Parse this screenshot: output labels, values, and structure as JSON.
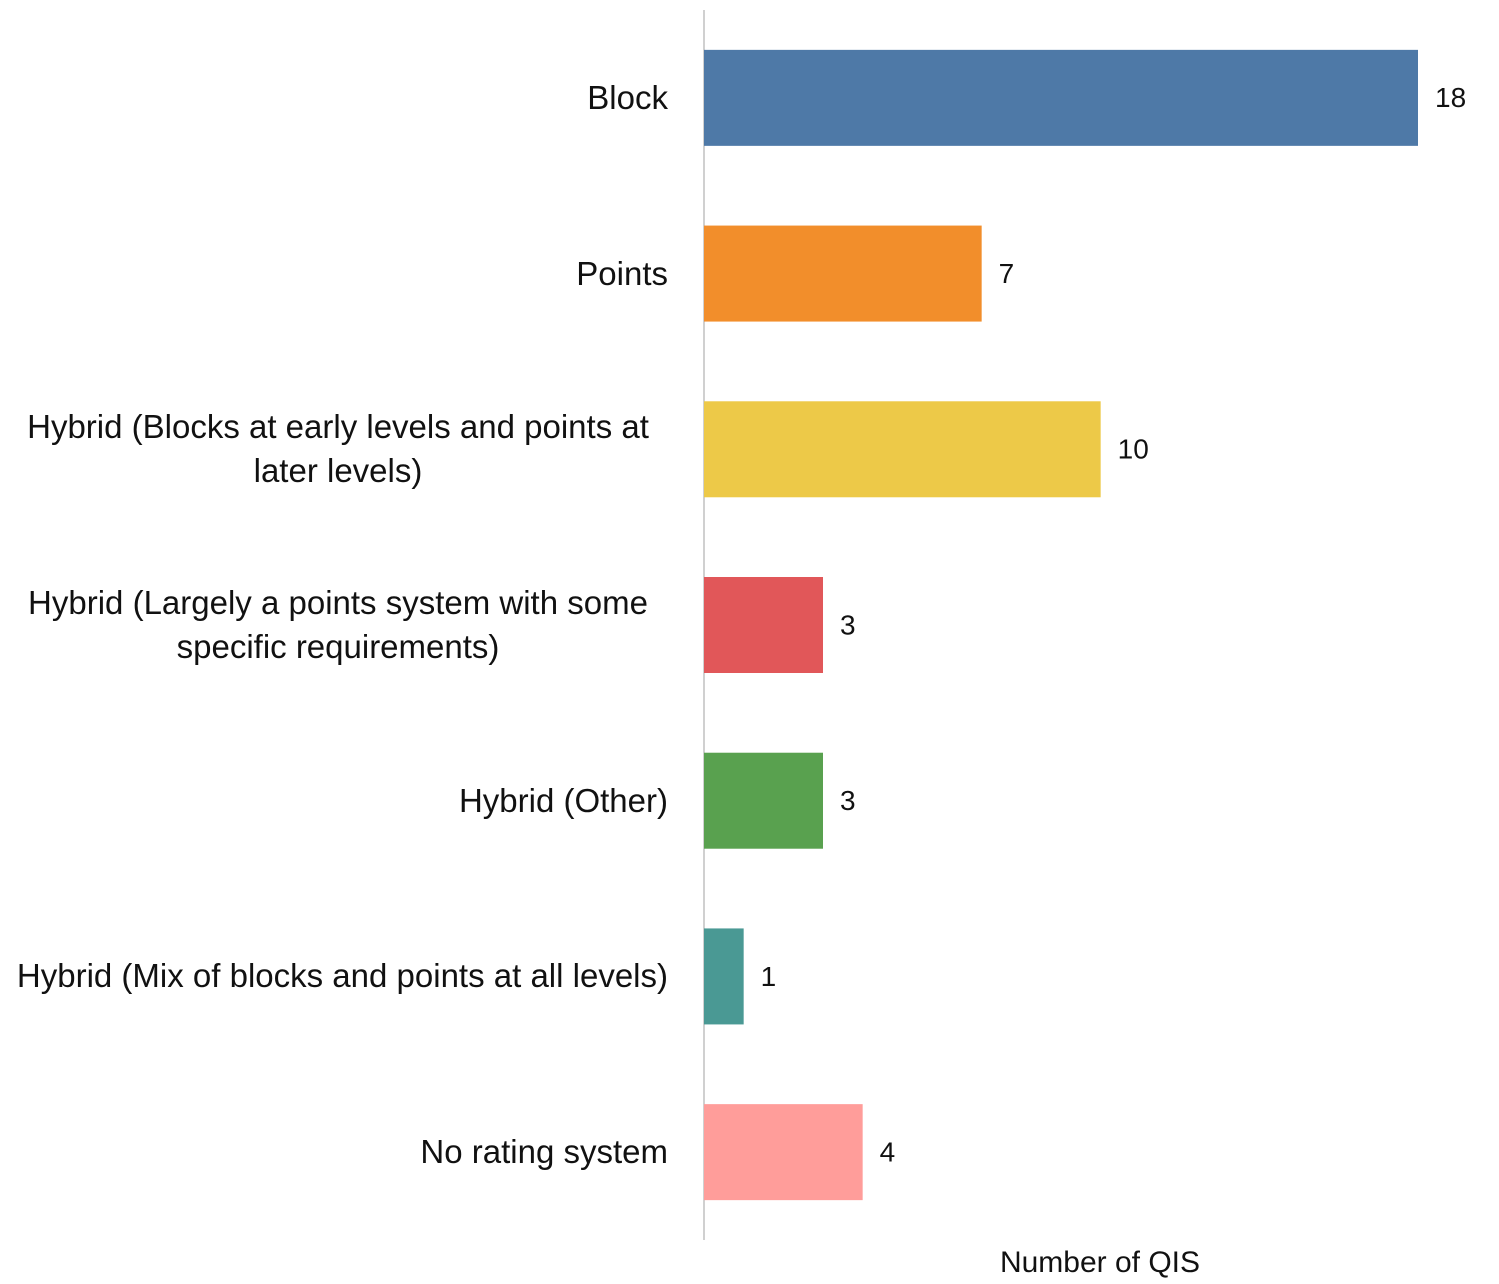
{
  "chart_data": {
    "type": "bar",
    "orientation": "horizontal",
    "categories": [
      "Block",
      "Points",
      "Hybrid (Blocks at early levels and points at later levels)",
      "Hybrid (Largely a points system with some specific requirements)",
      "Hybrid (Other)",
      "Hybrid (Mix of blocks and points at all levels)",
      "No rating system"
    ],
    "values": [
      18,
      7,
      10,
      3,
      3,
      1,
      4
    ],
    "colors": [
      "#4e79a7",
      "#f28e2b",
      "#edc948",
      "#e15759",
      "#59a14f",
      "#4a9994",
      "#ff9d9a"
    ],
    "x_label": "Number of QIS",
    "xlim": [
      0,
      18
    ]
  }
}
